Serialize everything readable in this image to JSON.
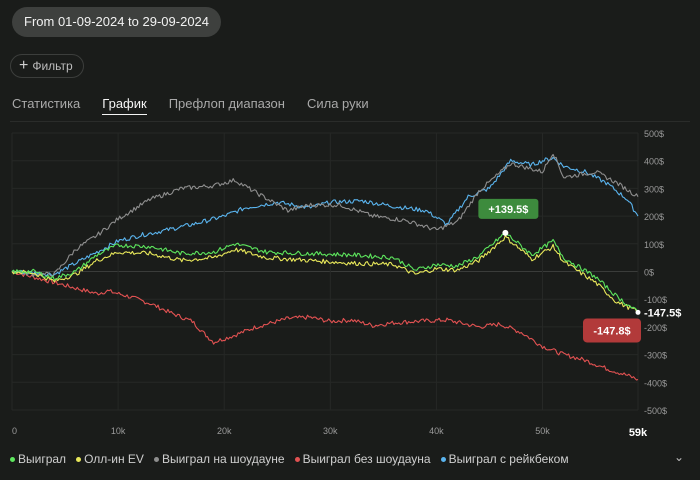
{
  "header": {
    "date_range": "From 01-09-2024 to 29-09-2024"
  },
  "filter": {
    "label": "Фильтр",
    "icon": "plus-icon"
  },
  "tabs": [
    {
      "label": "Статистика",
      "active": false
    },
    {
      "label": "График",
      "active": true
    },
    {
      "label": "Префлоп диапазон",
      "active": false
    },
    {
      "label": "Сила руки",
      "active": false
    }
  ],
  "legend_more_icon": "chevron-down-icon",
  "chart_data": {
    "type": "line",
    "xlabel": "",
    "ylabel": "",
    "x_ticks": [
      "0",
      "10k",
      "20k",
      "30k",
      "40k",
      "50k"
    ],
    "x_end_label": "59k",
    "x_range": [
      0,
      59000
    ],
    "y_ticks": [
      "500$",
      "400$",
      "300$",
      "200$",
      "100$",
      "0$",
      "-100$",
      "-200$",
      "-300$",
      "-400$",
      "-500$"
    ],
    "y_range": [
      -500,
      500
    ],
    "grid": true,
    "legend_position": "bottom",
    "annotations": [
      {
        "label": "+139.5$",
        "x": 46500,
        "y": 139.5,
        "color": "#3d8b3d"
      },
      {
        "label": "-147.8$",
        "x": 59000,
        "y": -147.8,
        "color": "#b23a3a"
      },
      {
        "label": "-147.5$",
        "x": 59000,
        "y": -147.5,
        "color": ""
      }
    ],
    "series": [
      {
        "name": "Выиграл",
        "color": "#5de65d",
        "x": [
          0,
          2000,
          4000,
          6000,
          8000,
          10000,
          13000,
          16000,
          19000,
          21000,
          24000,
          28000,
          32000,
          36000,
          38000,
          40000,
          42000,
          44000,
          46500,
          49000,
          51000,
          52000,
          55000,
          57000,
          59000
        ],
        "y": [
          0,
          0,
          -25,
          0,
          60,
          95,
          90,
          65,
          70,
          100,
          70,
          65,
          60,
          50,
          5,
          25,
          20,
          55,
          139.5,
          60,
          110,
          50,
          -20,
          -90,
          -147.5
        ]
      },
      {
        "name": "Олл-ин EV",
        "color": "#e8e85a",
        "x": [
          0,
          2000,
          4000,
          6000,
          8000,
          10000,
          13000,
          16000,
          19000,
          21000,
          24000,
          28000,
          32000,
          36000,
          38000,
          40000,
          42000,
          44000,
          46500,
          49000,
          51000,
          52000,
          55000,
          57000,
          59000
        ],
        "y": [
          0,
          -5,
          -35,
          -10,
          40,
          70,
          65,
          40,
          50,
          80,
          50,
          40,
          30,
          25,
          -10,
          10,
          5,
          40,
          125,
          45,
          90,
          35,
          -40,
          -110,
          -145
        ]
      },
      {
        "name": "Выиграл на шоудауне",
        "color": "#8e8e8e",
        "x": [
          0,
          2000,
          4000,
          6000,
          8000,
          10000,
          13000,
          16000,
          19000,
          21000,
          23000,
          26000,
          28000,
          31000,
          34000,
          37000,
          40000,
          42000,
          44000,
          47000,
          50000,
          51000,
          52000,
          55000,
          57000,
          59000
        ],
        "y": [
          0,
          -10,
          -10,
          80,
          130,
          190,
          260,
          300,
          310,
          330,
          285,
          220,
          240,
          240,
          200,
          185,
          150,
          180,
          290,
          390,
          360,
          430,
          340,
          360,
          320,
          270
        ]
      },
      {
        "name": "Выиграл без шоудауна",
        "color": "#e25252",
        "x": [
          0,
          2000,
          4000,
          6000,
          8000,
          9000,
          11000,
          13000,
          15000,
          17000,
          18000,
          19000,
          21000,
          23000,
          26000,
          28000,
          30000,
          32000,
          34000,
          36000,
          38000,
          41000,
          44000,
          46000,
          48000,
          50000,
          52000,
          54000,
          56000,
          58000,
          59000
        ],
        "y": [
          0,
          -20,
          -40,
          -60,
          -80,
          -70,
          -90,
          -115,
          -150,
          -180,
          -220,
          -255,
          -230,
          -200,
          -170,
          -165,
          -180,
          -175,
          -195,
          -185,
          -180,
          -175,
          -200,
          -190,
          -220,
          -270,
          -300,
          -320,
          -350,
          -375,
          -390
        ]
      },
      {
        "name": "Выиграл с рейкбеком",
        "color": "#5ab4ee",
        "x": [
          0,
          2000,
          4000,
          6000,
          8000,
          10000,
          12000,
          14000,
          17000,
          20000,
          22000,
          25000,
          28000,
          30000,
          33000,
          36000,
          39000,
          41000,
          43000,
          45000,
          47000,
          49000,
          50000,
          51000,
          52000,
          54000,
          56000,
          58000,
          59000
        ],
        "y": [
          0,
          -5,
          -10,
          30,
          70,
          110,
          130,
          145,
          170,
          200,
          230,
          250,
          230,
          250,
          255,
          235,
          220,
          170,
          270,
          300,
          400,
          385,
          400,
          410,
          380,
          360,
          320,
          260,
          200
        ]
      }
    ]
  }
}
